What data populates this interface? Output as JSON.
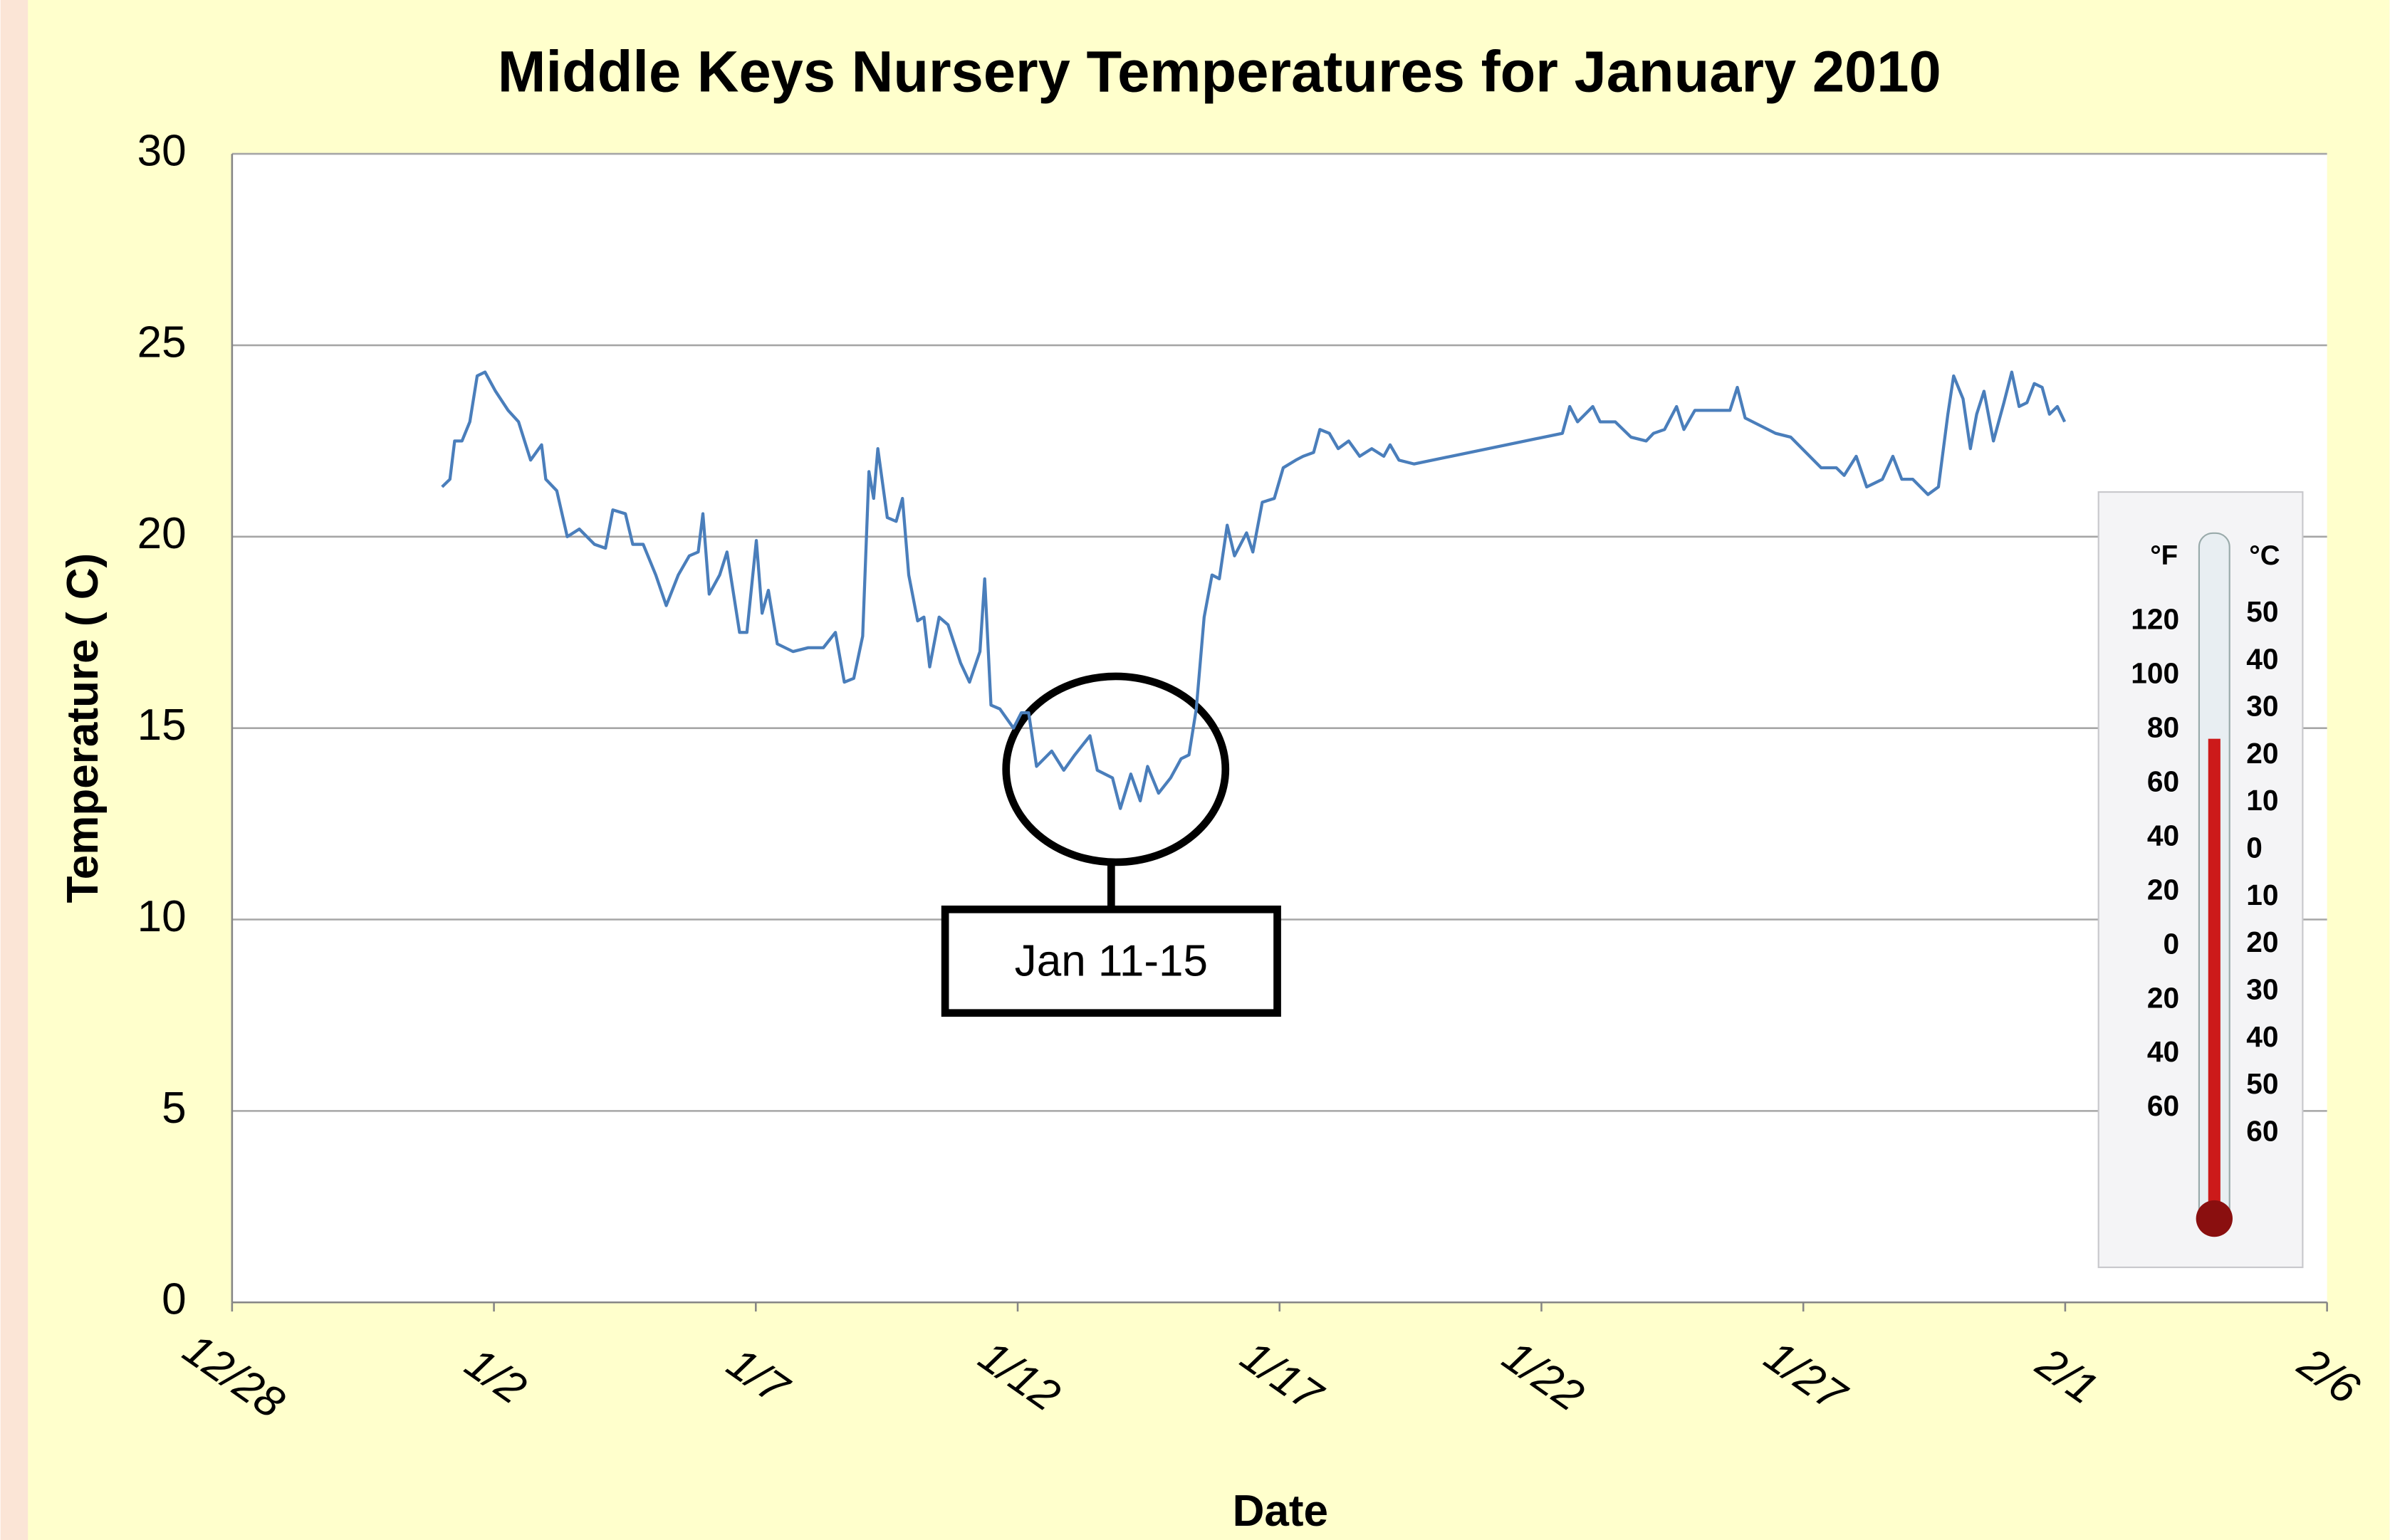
{
  "chart_data": {
    "type": "line",
    "title": "Middle Keys Nursery Temperatures for January 2010",
    "x_label": "Date",
    "y_label": "Temperature ( C)",
    "annotation": "Jan 11-15",
    "color": "#4a7ebb",
    "grid": true,
    "xlim": [
      40175,
      40215
    ],
    "xticks": [
      {
        "value": 40175,
        "label": "12/28"
      },
      {
        "value": 40180,
        "label": "1/2"
      },
      {
        "value": 40185,
        "label": "1/7"
      },
      {
        "value": 40190,
        "label": "1/12"
      },
      {
        "value": 40195,
        "label": "1/17"
      },
      {
        "value": 40200,
        "label": "1/22"
      },
      {
        "value": 40205,
        "label": "1/27"
      },
      {
        "value": 40210,
        "label": "2/1"
      },
      {
        "value": 40215,
        "label": "2/6"
      }
    ],
    "ylim": [
      0,
      30
    ],
    "yticks": [
      0,
      5,
      10,
      15,
      20,
      25,
      30
    ],
    "x": [
      40179.01,
      40179.16,
      40179.25,
      40179.39,
      40179.54,
      40179.68,
      40179.83,
      40180.03,
      40180.27,
      40180.47,
      40180.7,
      40180.91,
      40180.99,
      40181.2,
      40181.4,
      40181.63,
      40181.92,
      40182.13,
      40182.27,
      40182.51,
      40182.65,
      40182.85,
      40183.09,
      40183.29,
      40183.52,
      40183.73,
      40183.9,
      40183.99,
      40184.11,
      40184.31,
      40184.45,
      40184.69,
      40184.83,
      40185.01,
      40185.12,
      40185.24,
      40185.41,
      40185.71,
      40186.0,
      40186.29,
      40186.52,
      40186.69,
      40186.87,
      40187.04,
      40187.16,
      40187.25,
      40187.33,
      40187.51,
      40187.68,
      40187.8,
      40187.92,
      40188.09,
      40188.21,
      40188.32,
      40188.5,
      40188.67,
      40188.91,
      40189.08,
      40189.28,
      40189.37,
      40189.49,
      40189.66,
      40189.92,
      40190.07,
      40190.21,
      40190.36,
      40190.65,
      40190.88,
      40191.09,
      40191.38,
      40191.52,
      40191.81,
      40191.96,
      40192.16,
      40192.34,
      40192.48,
      40192.69,
      40192.92,
      40193.12,
      40193.27,
      40193.41,
      40193.56,
      40193.71,
      40193.85,
      40194.0,
      40194.14,
      40194.37,
      40194.49,
      40194.67,
      40194.9,
      40195.07,
      40195.31,
      40195.45,
      40195.65,
      40195.77,
      40195.95,
      40196.12,
      40196.32,
      40196.53,
      40196.76,
      40196.99,
      40197.11,
      40197.28,
      40197.57,
      40200.4,
      40200.54,
      40200.69,
      40200.98,
      40201.12,
      40201.41,
      40201.71,
      40202.0,
      40202.14,
      40202.35,
      40202.58,
      40202.72,
      40202.93,
      40203.3,
      40203.6,
      40203.74,
      40203.89,
      40204.18,
      40204.47,
      40204.76,
      40205.05,
      40205.34,
      40205.63,
      40205.78,
      40206.01,
      40206.21,
      40206.51,
      40206.71,
      40206.88,
      40207.09,
      40207.38,
      40207.58,
      40207.76,
      40207.87,
      40208.05,
      40208.19,
      40208.31,
      40208.45,
      40208.63,
      40208.83,
      40208.98,
      40209.12,
      40209.27,
      40209.41,
      40209.56,
      40209.7,
      40209.85,
      40209.99
    ],
    "values": [
      21.3,
      21.5,
      22.5,
      22.5,
      23.0,
      24.2,
      24.3,
      23.8,
      23.3,
      23.0,
      22.0,
      22.4,
      21.5,
      21.2,
      20.0,
      20.2,
      19.8,
      19.7,
      20.7,
      20.6,
      19.8,
      19.8,
      19.0,
      18.2,
      19.0,
      19.5,
      19.6,
      20.6,
      18.5,
      19.0,
      19.6,
      17.5,
      17.5,
      19.9,
      18.0,
      18.6,
      17.2,
      17.0,
      17.1,
      17.1,
      17.5,
      16.2,
      16.3,
      17.4,
      21.7,
      21.0,
      22.3,
      20.5,
      20.4,
      21.0,
      19.0,
      17.8,
      17.9,
      16.6,
      17.9,
      17.7,
      16.7,
      16.2,
      17.0,
      18.9,
      15.6,
      15.5,
      15.0,
      15.4,
      15.4,
      14.0,
      14.4,
      13.9,
      14.3,
      14.8,
      13.9,
      13.7,
      12.9,
      13.8,
      13.1,
      14.0,
      13.3,
      13.7,
      14.2,
      14.3,
      15.5,
      17.9,
      19.0,
      18.9,
      20.3,
      19.5,
      20.1,
      19.6,
      20.9,
      21.0,
      21.8,
      22.0,
      22.1,
      22.2,
      22.8,
      22.7,
      22.3,
      22.5,
      22.1,
      22.3,
      22.1,
      22.4,
      22.0,
      21.9,
      22.7,
      23.4,
      23.0,
      23.4,
      23.0,
      23.0,
      22.6,
      22.5,
      22.7,
      22.8,
      23.4,
      22.8,
      23.3,
      23.3,
      23.3,
      23.9,
      23.1,
      22.9,
      22.7,
      22.6,
      22.2,
      21.8,
      21.8,
      21.6,
      22.1,
      21.3,
      21.5,
      22.1,
      21.5,
      21.5,
      21.1,
      21.3,
      23.2,
      24.2,
      23.6,
      22.3,
      23.2,
      23.8,
      22.5,
      23.5,
      24.3,
      23.4,
      23.5,
      24.0,
      23.9,
      23.2,
      23.4,
      23.0
    ]
  },
  "thermometer": {
    "fahrenheit_unit": "°F",
    "celsius_unit": "°C",
    "fahrenheit": [
      "120",
      "100",
      "80",
      "60",
      "40",
      "20",
      "0",
      "20",
      "40",
      "60"
    ],
    "celsius": [
      "50",
      "40",
      "30",
      "20",
      "10",
      "0",
      "10",
      "20",
      "30",
      "40",
      "50",
      "60"
    ]
  }
}
